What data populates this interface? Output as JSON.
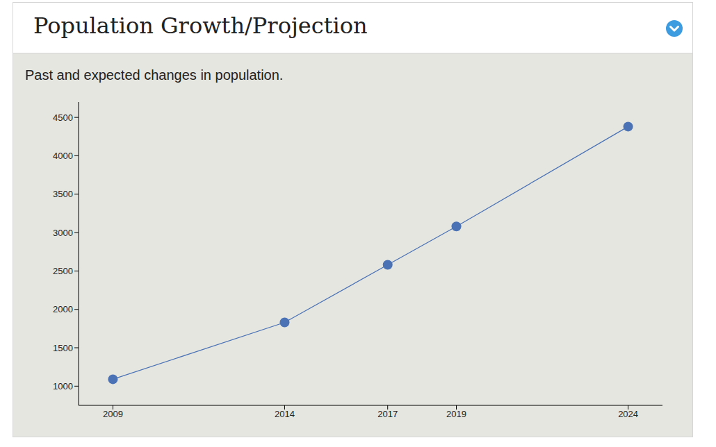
{
  "chart_data": {
    "type": "line",
    "title": "Population Growth/Projection",
    "subtitle": "Past and expected changes in population.",
    "x": [
      2009,
      2014,
      2017,
      2019,
      2024
    ],
    "values": [
      1090,
      1830,
      2580,
      3080,
      4380
    ],
    "color": "#4a72b5",
    "xlim": [
      2008,
      2025
    ],
    "xticks": [
      2009,
      2014,
      2017,
      2019,
      2024
    ],
    "ylim": [
      750,
      4700
    ],
    "yticks": [
      1000,
      1500,
      2000,
      2500,
      3000,
      3500,
      4000,
      4500
    ],
    "grid": false,
    "marker": "circle"
  }
}
